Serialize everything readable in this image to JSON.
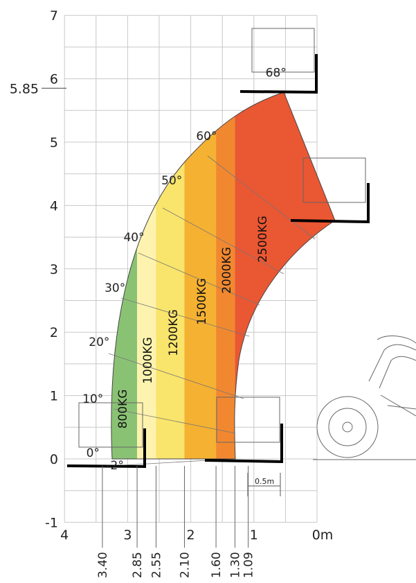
{
  "chart_data": {
    "type": "area",
    "title": "",
    "xlabel": "",
    "ylabel": "",
    "xlim": [
      4,
      0
    ],
    "ylim": [
      -1,
      7
    ],
    "grid": true,
    "x_ticks": [
      {
        "value": 4,
        "label": "4"
      },
      {
        "value": 3,
        "label": "3"
      },
      {
        "value": 2,
        "label": "2"
      },
      {
        "value": 1,
        "label": "1"
      },
      {
        "value": 0,
        "label": "0m"
      }
    ],
    "x_extra_ticks": [
      {
        "value": 3.4,
        "label": "3.40"
      },
      {
        "value": 2.85,
        "label": "2.85"
      },
      {
        "value": 2.55,
        "label": "2.55"
      },
      {
        "value": 2.1,
        "label": "2.10"
      },
      {
        "value": 1.6,
        "label": "1.60"
      },
      {
        "value": 1.3,
        "label": "1.30"
      },
      {
        "value": 1.09,
        "label": "1.09"
      }
    ],
    "y_ticks": [
      {
        "value": 7,
        "label": "7"
      },
      {
        "value": 6,
        "label": "6"
      },
      {
        "value": 5,
        "label": "5"
      },
      {
        "value": 4,
        "label": "4"
      },
      {
        "value": 3,
        "label": "3"
      },
      {
        "value": 2,
        "label": "2"
      },
      {
        "value": 1,
        "label": "1"
      },
      {
        "value": 0,
        "label": "0"
      },
      {
        "value": -1,
        "label": "-1"
      }
    ],
    "max_height": {
      "value": 5.85,
      "label": "5.85"
    },
    "zones": [
      {
        "name": "800KG",
        "x_from": 3.4,
        "x_to": 2.85,
        "color": "#8ac274"
      },
      {
        "name": "1000KG",
        "x_from": 2.85,
        "x_to": 2.55,
        "color": "#fdf3ae"
      },
      {
        "name": "1200KG",
        "x_from": 2.55,
        "x_to": 2.1,
        "color": "#f9e46c"
      },
      {
        "name": "1500KG",
        "x_from": 2.1,
        "x_to": 1.6,
        "color": "#f5b132"
      },
      {
        "name": "2000KG",
        "x_from": 1.6,
        "x_to": 1.3,
        "color": "#f18830"
      },
      {
        "name": "2500KG",
        "x_from": 1.3,
        "x_to": 0.5,
        "color": "#ea5733"
      }
    ],
    "boom_angles": [
      {
        "label": "-2°",
        "x": 3.2,
        "y": -0.1
      },
      {
        "label": "0°",
        "x": 3.55,
        "y": 0.1
      },
      {
        "label": "10°",
        "x": 3.55,
        "y": 0.95
      },
      {
        "label": "20°",
        "x": 3.45,
        "y": 1.85
      },
      {
        "label": "30°",
        "x": 3.2,
        "y": 2.7
      },
      {
        "label": "40°",
        "x": 2.9,
        "y": 3.5
      },
      {
        "label": "50°",
        "x": 2.3,
        "y": 4.4
      },
      {
        "label": "60°",
        "x": 1.75,
        "y": 5.1
      },
      {
        "label": "68°",
        "x": 0.65,
        "y": 6.1
      }
    ],
    "scale_bar": {
      "label": "0.5m",
      "value": 0.5
    }
  }
}
